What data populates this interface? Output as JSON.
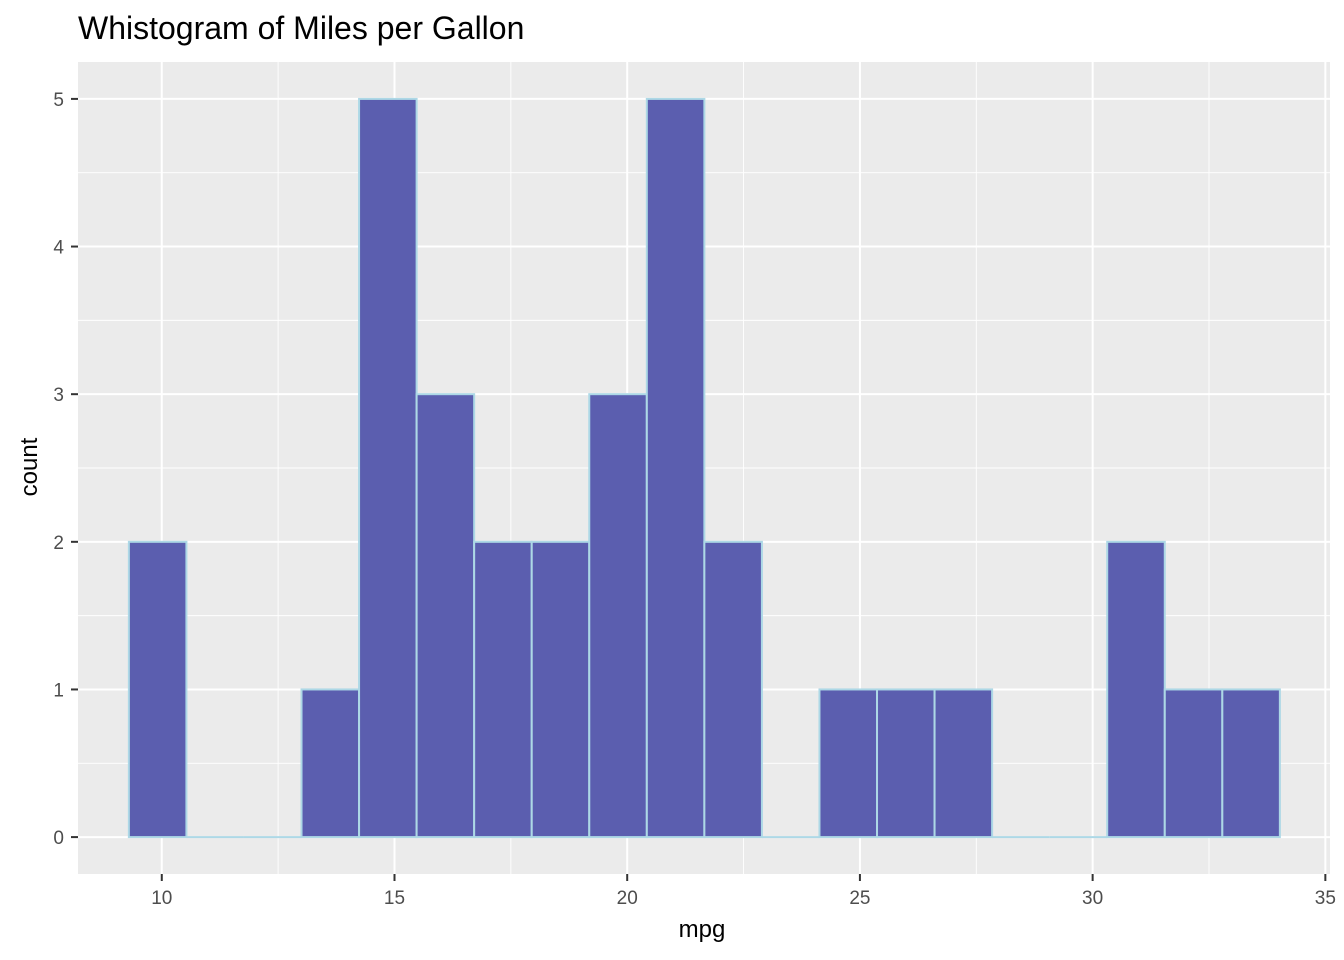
{
  "chart_data": {
    "type": "bar",
    "subtype": "histogram",
    "title": "Whistogram of Miles per Gallon",
    "xlabel": "mpg",
    "ylabel": "count",
    "xlim": [
      8.2,
      35.1
    ],
    "ylim": [
      -0.25,
      5.25
    ],
    "x_ticks": [
      10,
      15,
      20,
      25,
      30,
      35
    ],
    "y_ticks": [
      0,
      1,
      2,
      3,
      4,
      5
    ],
    "bins": [
      {
        "x0": 9.2929,
        "x1": 10.5294,
        "count": 2
      },
      {
        "x0": 10.5294,
        "x1": 11.7659,
        "count": 0
      },
      {
        "x0": 11.7659,
        "x1": 13.0024,
        "count": 0
      },
      {
        "x0": 13.0024,
        "x1": 14.2389,
        "count": 1
      },
      {
        "x0": 14.2389,
        "x1": 15.4754,
        "count": 5
      },
      {
        "x0": 15.4754,
        "x1": 16.7119,
        "count": 3
      },
      {
        "x0": 16.7119,
        "x1": 17.9484,
        "count": 2
      },
      {
        "x0": 17.9484,
        "x1": 19.1849,
        "count": 2
      },
      {
        "x0": 19.1849,
        "x1": 20.4214,
        "count": 3
      },
      {
        "x0": 20.4214,
        "x1": 21.6579,
        "count": 5
      },
      {
        "x0": 21.6579,
        "x1": 22.8944,
        "count": 2
      },
      {
        "x0": 22.8944,
        "x1": 24.1309,
        "count": 0
      },
      {
        "x0": 24.1309,
        "x1": 25.3674,
        "count": 1
      },
      {
        "x0": 25.3674,
        "x1": 26.6039,
        "count": 1
      },
      {
        "x0": 26.6039,
        "x1": 27.8404,
        "count": 1
      },
      {
        "x0": 27.8404,
        "x1": 29.0769,
        "count": 0
      },
      {
        "x0": 29.0769,
        "x1": 30.3134,
        "count": 0
      },
      {
        "x0": 30.3134,
        "x1": 31.5499,
        "count": 2
      },
      {
        "x0": 31.5499,
        "x1": 32.7864,
        "count": 1
      },
      {
        "x0": 32.7864,
        "x1": 34.0229,
        "count": 1
      }
    ],
    "grid": true,
    "colors": {
      "panel_background": "#EBEBEB",
      "grid_line": "#FFFFFF",
      "bar_fill": "#5B5EAF",
      "bar_outline": "#ADD8E6",
      "tick_label": "#4D4D4D"
    }
  }
}
